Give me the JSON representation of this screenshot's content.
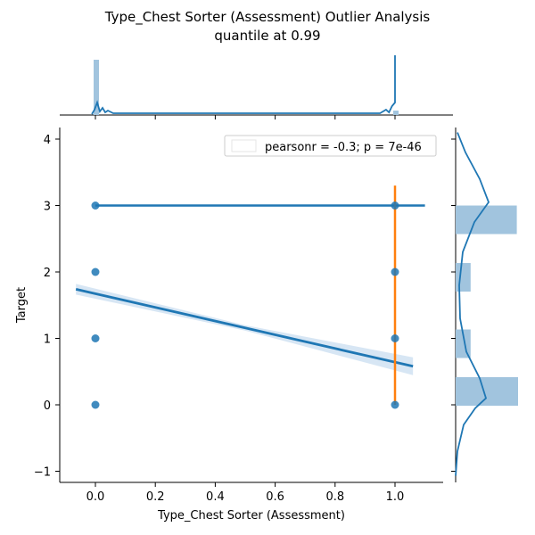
{
  "title_line1": "Type_Chest Sorter (Assessment) Outlier Analysis",
  "title_line2": "quantile at 0.99",
  "chart_data": {
    "type": "scatter",
    "xlabel": "Type_Chest Sorter (Assessment)",
    "ylabel": "Target",
    "xlim": [
      -0.12,
      1.18
    ],
    "ylim": [
      -1.15,
      4.15
    ],
    "x_ticks": [
      "0.0",
      "0.2",
      "0.4",
      "0.6",
      "0.8",
      "1.0"
    ],
    "y_ticks": [
      "−1",
      "0",
      "1",
      "2",
      "3",
      "4"
    ],
    "legend": {
      "text": "pearsonr = -0.3; p = 7e-46",
      "placement": "top-right"
    },
    "grid": false,
    "points": [
      {
        "x": 0,
        "y": 0
      },
      {
        "x": 0,
        "y": 1
      },
      {
        "x": 0,
        "y": 2
      },
      {
        "x": 0,
        "y": 3
      },
      {
        "x": 1,
        "y": 0
      },
      {
        "x": 1,
        "y": 1
      },
      {
        "x": 1,
        "y": 2
      },
      {
        "x": 1,
        "y": 3
      }
    ],
    "regression_line": {
      "x": [
        -0.065,
        1.06
      ],
      "y": [
        1.74,
        0.58
      ],
      "color": "#1f77b4"
    },
    "h_line": {
      "x": [
        0,
        1.1
      ],
      "y": 3,
      "color": "#1f77b4"
    },
    "v_line": {
      "x": 1,
      "y": [
        0,
        3.3
      ],
      "color": "#ff7f0e"
    },
    "marginal_x_hist": {
      "bins": [
        0,
        1
      ],
      "heights": [
        1.0,
        0.08
      ]
    },
    "marginal_y_hist": {
      "bins": [
        0,
        1,
        2,
        3
      ],
      "widths": [
        1.0,
        0.24,
        0.24,
        0.98
      ]
    },
    "colors": {
      "points": "#1f77b4",
      "hist": "#a1c4de",
      "band": "#c6dbef",
      "orange": "#ff7f0e"
    }
  }
}
